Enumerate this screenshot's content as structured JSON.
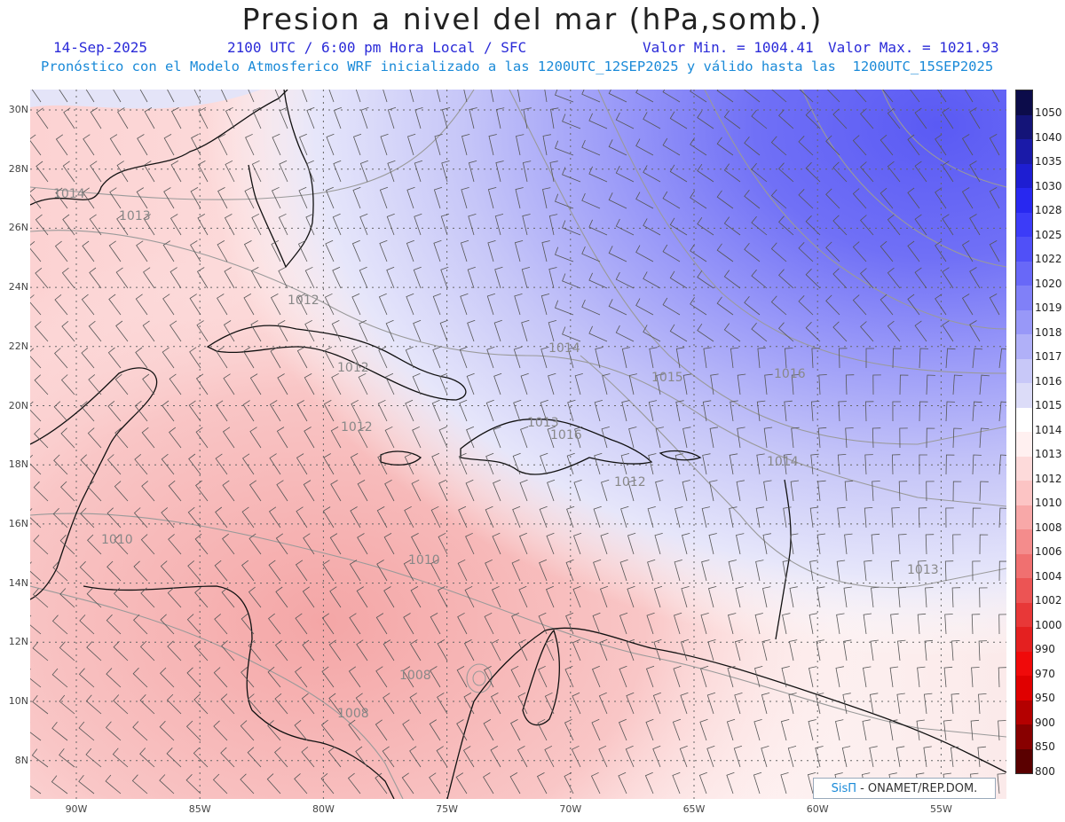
{
  "header": {
    "title": "Presion a nivel del mar (hPa,somb.)",
    "date": "14-Sep-2025",
    "time": "2100 UTC / 6:00 pm Hora Local / SFC",
    "min": "Valor Min. = 1004.41",
    "max": "Valor Max. = 1021.93",
    "forecast": "Pronóstico con el Modelo Atmosferico WRF inicializado a las 1200UTC_12SEP2025 y válido hasta las  1200UTC_15SEP2025"
  },
  "axes": {
    "lat_labels": [
      "30N",
      "28N",
      "26N",
      "24N",
      "22N",
      "20N",
      "18N",
      "16N",
      "14N",
      "12N",
      "10N",
      "8N"
    ],
    "lon_labels": [
      "90W",
      "85W",
      "80W",
      "75W",
      "70W",
      "65W",
      "60W",
      "55W"
    ]
  },
  "contour_labels": [
    "1014",
    "1013",
    "1012",
    "1012",
    "1012",
    "1013",
    "1012",
    "1010",
    "1010",
    "1008",
    "1008",
    "1014",
    "1015",
    "1016",
    "1014",
    "1013",
    "1016"
  ],
  "colorbar": {
    "labels": [
      "1050",
      "1040",
      "1035",
      "1030",
      "1028",
      "1025",
      "1022",
      "1020",
      "1019",
      "1018",
      "1017",
      "1016",
      "1015",
      "1014",
      "1013",
      "1012",
      "1010",
      "1008",
      "1006",
      "1004",
      "1002",
      "1000",
      "990",
      "970",
      "950",
      "900",
      "850",
      "800"
    ],
    "colors": [
      "#0c0c4a",
      "#141478",
      "#1a1aa8",
      "#1e1ed2",
      "#2828f0",
      "#3c3cf8",
      "#5050f8",
      "#6868f8",
      "#8080f8",
      "#9898f8",
      "#b0b0f8",
      "#c8c8f8",
      "#dcdcf8",
      "#ffffff",
      "#fff0f0",
      "#fddada",
      "#fcc4c4",
      "#f8a8a8",
      "#f48c8c",
      "#f07070",
      "#ec5454",
      "#e83838",
      "#e42020",
      "#f00a0a",
      "#e00000",
      "#b40000",
      "#880000",
      "#5a0000"
    ]
  },
  "credit": {
    "brand": "SisΠ",
    "org": "- ONAMET/REP.DOM."
  }
}
